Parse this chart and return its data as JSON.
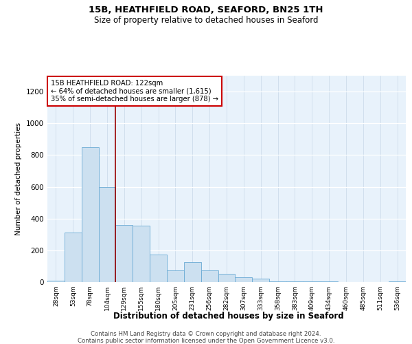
{
  "title": "15B, HEATHFIELD ROAD, SEAFORD, BN25 1TH",
  "subtitle": "Size of property relative to detached houses in Seaford",
  "xlabel": "Distribution of detached houses by size in Seaford",
  "ylabel": "Number of detached properties",
  "bin_labels": [
    "28sqm",
    "53sqm",
    "78sqm",
    "104sqm",
    "129sqm",
    "155sqm",
    "180sqm",
    "205sqm",
    "231sqm",
    "256sqm",
    "282sqm",
    "307sqm",
    "333sqm",
    "358sqm",
    "383sqm",
    "409sqm",
    "434sqm",
    "460sqm",
    "485sqm",
    "511sqm",
    "536sqm"
  ],
  "bar_heights": [
    10,
    310,
    850,
    600,
    360,
    355,
    175,
    75,
    125,
    75,
    50,
    30,
    20,
    5,
    5,
    5,
    5,
    0,
    0,
    0,
    5
  ],
  "bar_color": "#cce0f0",
  "bar_edge_color": "#6aaad4",
  "annotation_text": "15B HEATHFIELD ROAD: 122sqm\n← 64% of detached houses are smaller (1,615)\n35% of semi-detached houses are larger (878) →",
  "annotation_box_color": "#ffffff",
  "annotation_box_edge": "#cc0000",
  "red_line_bin": 4,
  "ylim": [
    0,
    1300
  ],
  "yticks": [
    0,
    200,
    400,
    600,
    800,
    1000,
    1200
  ],
  "footer_line1": "Contains HM Land Registry data © Crown copyright and database right 2024.",
  "footer_line2": "Contains public sector information licensed under the Open Government Licence v3.0.",
  "plot_bg_color": "#e8f2fb",
  "fig_bg_color": "#ffffff",
  "grid_color": "#d0dde8"
}
